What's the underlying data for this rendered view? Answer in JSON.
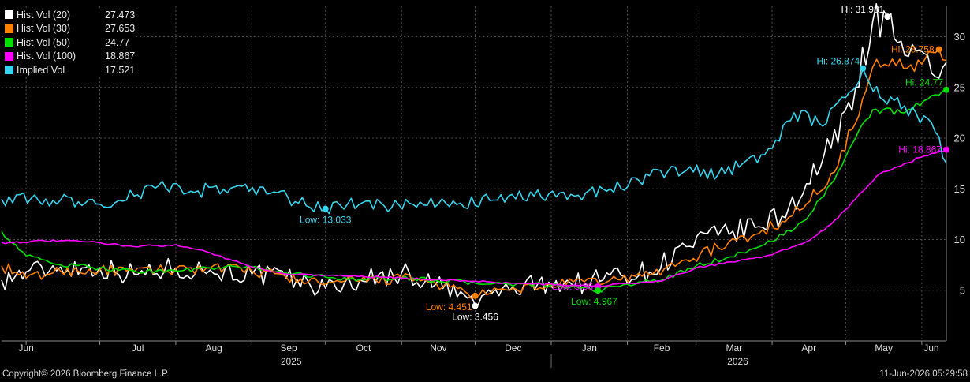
{
  "footer": {
    "copyright": "Copyright© 2026 Bloomberg Finance L.P.",
    "timestamp": "11-Jun-2026 05:29:58"
  },
  "chart_data": {
    "type": "line",
    "ylim": [
      0,
      33
    ],
    "y_ticks": [
      5,
      10,
      15,
      20,
      25,
      30
    ],
    "y_axis_side": "right",
    "grid": true,
    "legend_position": "top-left",
    "x_range": [
      "2025-05-22",
      "2026-06-11"
    ],
    "x_month_ticks": [
      {
        "label": "Jun",
        "date": "2025-06-01"
      },
      {
        "label": "Jul",
        "date": "2025-07-01"
      },
      {
        "label": "Aug",
        "date": "2025-08-01"
      },
      {
        "label": "Sep",
        "date": "2025-09-01"
      },
      {
        "label": "Oct",
        "date": "2025-10-01"
      },
      {
        "label": "Nov",
        "date": "2025-11-01"
      },
      {
        "label": "Dec",
        "date": "2025-12-01"
      },
      {
        "label": "Jan",
        "date": "2026-01-01"
      },
      {
        "label": "Feb",
        "date": "2026-02-01"
      },
      {
        "label": "Mar",
        "date": "2026-03-01"
      },
      {
        "label": "Apr",
        "date": "2026-04-01"
      },
      {
        "label": "May",
        "date": "2026-05-01"
      },
      {
        "label": "Jun",
        "date": "2026-06-01"
      }
    ],
    "x_year_labels": [
      {
        "label": "2025",
        "date": "2025-09-17"
      },
      {
        "label": "2026",
        "date": "2026-03-18"
      }
    ],
    "x_year_divider": "2026-01-01",
    "series": [
      {
        "name": "Hist Vol (20)",
        "last": "27.473",
        "color": "#ffffff",
        "points": [
          [
            "2025-05-22",
            6.0
          ],
          [
            "2025-06-01",
            6.8
          ],
          [
            "2025-06-15",
            7.3
          ],
          [
            "2025-07-01",
            7.2
          ],
          [
            "2025-07-15",
            6.6
          ],
          [
            "2025-08-01",
            7.2
          ],
          [
            "2025-08-15",
            7.0
          ],
          [
            "2025-09-01",
            6.6
          ],
          [
            "2025-09-15",
            6.2
          ],
          [
            "2025-10-01",
            5.2
          ],
          [
            "2025-10-15",
            6.0
          ],
          [
            "2025-11-01",
            6.7
          ],
          [
            "2025-11-15",
            5.6
          ],
          [
            "2025-11-28",
            4.2
          ],
          [
            "2025-12-01",
            3.456
          ],
          [
            "2025-12-05",
            4.6
          ],
          [
            "2025-12-15",
            5.0
          ],
          [
            "2025-12-31",
            5.8
          ],
          [
            "2026-01-15",
            5.7
          ],
          [
            "2026-01-25",
            6.5
          ],
          [
            "2026-02-10",
            6.8
          ],
          [
            "2026-02-25",
            9.3
          ],
          [
            "2026-03-10",
            10.4
          ],
          [
            "2026-03-25",
            11.2
          ],
          [
            "2026-04-05",
            12.3
          ],
          [
            "2026-04-15",
            15.5
          ],
          [
            "2026-04-25",
            19.0
          ],
          [
            "2026-05-05",
            25.0
          ],
          [
            "2026-05-12",
            31.5
          ],
          [
            "2026-05-18",
            31.981
          ],
          [
            "2026-05-25",
            28.2
          ],
          [
            "2026-06-05",
            26.4
          ],
          [
            "2026-06-11",
            27.473
          ]
        ]
      },
      {
        "name": "Hist Vol (30)",
        "last": "27.653",
        "color": "#ff7f00",
        "points": [
          [
            "2025-05-22",
            7.4
          ],
          [
            "2025-06-01",
            6.2
          ],
          [
            "2025-06-15",
            6.9
          ],
          [
            "2025-07-01",
            7.0
          ],
          [
            "2025-07-15",
            6.8
          ],
          [
            "2025-08-01",
            7.1
          ],
          [
            "2025-08-15",
            7.2
          ],
          [
            "2025-09-01",
            6.9
          ],
          [
            "2025-09-15",
            6.3
          ],
          [
            "2025-10-01",
            5.6
          ],
          [
            "2025-10-15",
            5.9
          ],
          [
            "2025-11-01",
            6.2
          ],
          [
            "2025-11-15",
            5.7
          ],
          [
            "2025-12-01",
            4.451
          ],
          [
            "2025-12-15",
            5.0
          ],
          [
            "2026-01-01",
            5.5
          ],
          [
            "2026-01-25",
            6.0
          ],
          [
            "2026-02-10",
            6.5
          ],
          [
            "2026-02-25",
            8.0
          ],
          [
            "2026-03-10",
            9.2
          ],
          [
            "2026-03-25",
            10.5
          ],
          [
            "2026-04-05",
            11.8
          ],
          [
            "2026-04-15",
            13.5
          ],
          [
            "2026-04-25",
            16.5
          ],
          [
            "2026-05-05",
            21.5
          ],
          [
            "2026-05-12",
            27.0
          ],
          [
            "2026-05-20",
            27.8
          ],
          [
            "2026-06-01",
            27.3
          ],
          [
            "2026-06-08",
            28.758
          ],
          [
            "2026-06-11",
            27.653
          ]
        ]
      },
      {
        "name": "Hist Vol (50)",
        "last": "24.77",
        "color": "#00e000",
        "points": [
          [
            "2025-05-22",
            10.8
          ],
          [
            "2025-06-01",
            8.4
          ],
          [
            "2025-06-15",
            7.5
          ],
          [
            "2025-07-01",
            7.2
          ],
          [
            "2025-07-15",
            6.9
          ],
          [
            "2025-08-01",
            6.9
          ],
          [
            "2025-08-15",
            7.2
          ],
          [
            "2025-09-01",
            7.3
          ],
          [
            "2025-09-15",
            6.7
          ],
          [
            "2025-10-01",
            6.3
          ],
          [
            "2025-10-15",
            6.1
          ],
          [
            "2025-11-01",
            6.2
          ],
          [
            "2025-11-15",
            6.0
          ],
          [
            "2025-12-01",
            5.7
          ],
          [
            "2025-12-15",
            5.6
          ],
          [
            "2026-01-01",
            5.5
          ],
          [
            "2026-01-20",
            4.967
          ],
          [
            "2026-02-01",
            5.6
          ],
          [
            "2026-02-15",
            6.0
          ],
          [
            "2026-03-01",
            7.4
          ],
          [
            "2026-03-15",
            8.3
          ],
          [
            "2026-04-01",
            9.8
          ],
          [
            "2026-04-15",
            12.0
          ],
          [
            "2026-04-25",
            15.5
          ],
          [
            "2026-05-05",
            20.0
          ],
          [
            "2026-05-12",
            22.8
          ],
          [
            "2026-05-25",
            22.5
          ],
          [
            "2026-06-05",
            24.2
          ],
          [
            "2026-06-11",
            24.77
          ]
        ]
      },
      {
        "name": "Hist Vol (100)",
        "last": "18.867",
        "color": "#ff00ff",
        "points": [
          [
            "2025-05-22",
            9.7
          ],
          [
            "2025-06-15",
            9.9
          ],
          [
            "2025-07-01",
            9.7
          ],
          [
            "2025-07-15",
            9.3
          ],
          [
            "2025-08-01",
            9.5
          ],
          [
            "2025-08-15",
            8.7
          ],
          [
            "2025-09-01",
            7.3
          ],
          [
            "2025-09-15",
            6.6
          ],
          [
            "2025-10-01",
            6.5
          ],
          [
            "2025-11-01",
            6.2
          ],
          [
            "2025-12-01",
            5.9
          ],
          [
            "2025-12-15",
            5.7
          ],
          [
            "2026-01-10",
            5.5
          ],
          [
            "2026-01-20",
            5.36
          ],
          [
            "2026-02-01",
            5.7
          ],
          [
            "2026-02-15",
            5.9
          ],
          [
            "2026-03-01",
            7.2
          ],
          [
            "2026-03-15",
            7.8
          ],
          [
            "2026-04-01",
            8.5
          ],
          [
            "2026-04-15",
            9.8
          ],
          [
            "2026-04-25",
            11.5
          ],
          [
            "2026-05-05",
            14.0
          ],
          [
            "2026-05-15",
            16.5
          ],
          [
            "2026-05-25",
            17.5
          ],
          [
            "2026-06-05",
            18.5
          ],
          [
            "2026-06-11",
            18.867
          ]
        ]
      },
      {
        "name": "Implied Vol",
        "last": "17.521",
        "color": "#33d6ee",
        "points": [
          [
            "2025-05-22",
            14.0
          ],
          [
            "2025-06-15",
            13.9
          ],
          [
            "2025-07-01",
            13.5
          ],
          [
            "2025-07-15",
            14.3
          ],
          [
            "2025-07-25",
            15.3
          ],
          [
            "2025-08-10",
            14.8
          ],
          [
            "2025-08-25",
            15.2
          ],
          [
            "2025-09-10",
            14.7
          ],
          [
            "2025-09-20",
            13.6
          ],
          [
            "2025-10-01",
            13.033
          ],
          [
            "2025-10-10",
            13.5
          ],
          [
            "2025-10-25",
            13.3
          ],
          [
            "2025-11-10",
            13.4
          ],
          [
            "2025-11-25",
            13.6
          ],
          [
            "2025-12-10",
            13.9
          ],
          [
            "2025-12-25",
            14.3
          ],
          [
            "2026-01-15",
            14.6
          ],
          [
            "2026-01-25",
            15.0
          ],
          [
            "2026-02-10",
            16.3
          ],
          [
            "2026-02-25",
            16.8
          ],
          [
            "2026-03-10",
            16.4
          ],
          [
            "2026-03-20",
            17.5
          ],
          [
            "2026-04-01",
            19.0
          ],
          [
            "2026-04-10",
            22.5
          ],
          [
            "2026-04-20",
            21.5
          ],
          [
            "2026-05-01",
            24.0
          ],
          [
            "2026-05-08",
            26.874
          ],
          [
            "2026-05-15",
            24.0
          ],
          [
            "2026-05-25",
            23.2
          ],
          [
            "2026-06-05",
            21.5
          ],
          [
            "2026-06-11",
            17.521
          ]
        ]
      }
    ],
    "annotations": [
      {
        "text": "Low: 13.033",
        "series": "Implied Vol",
        "date": "2025-10-01",
        "value": 13.033,
        "pos": "below"
      },
      {
        "text": "Low: 4.451",
        "series": "Hist Vol (30)",
        "date": "2025-12-01",
        "value": 4.451,
        "pos": "below-left"
      },
      {
        "text": "Low: 3.456",
        "series": "Hist Vol (20)",
        "date": "2025-12-01",
        "value": 3.456,
        "pos": "below"
      },
      {
        "text": "Low: 5.36",
        "series": "Hist Vol (100)",
        "date": "2026-01-20",
        "value": 5.36,
        "pos": "left"
      },
      {
        "text": "Low: 4.967",
        "series": "Hist Vol (50)",
        "date": "2026-01-20",
        "value": 4.967,
        "pos": "below-right"
      },
      {
        "text": "Hi: 31.981",
        "series": "Hist Vol (20)",
        "date": "2026-05-18",
        "value": 31.981,
        "pos": "above-left"
      },
      {
        "text": "Hi: 28.758",
        "series": "Hist Vol (30)",
        "date": "2026-06-08",
        "value": 28.758,
        "pos": "left"
      },
      {
        "text": "Hi: 26.874",
        "series": "Implied Vol",
        "date": "2026-05-08",
        "value": 26.874,
        "pos": "above-left"
      },
      {
        "text": "Hi: 24.77",
        "series": "Hist Vol (50)",
        "date": "2026-06-11",
        "value": 24.77,
        "pos": "above-left"
      },
      {
        "text": "Hi: 18.867",
        "series": "Hist Vol (100)",
        "date": "2026-06-11",
        "value": 18.867,
        "pos": "left"
      }
    ]
  }
}
